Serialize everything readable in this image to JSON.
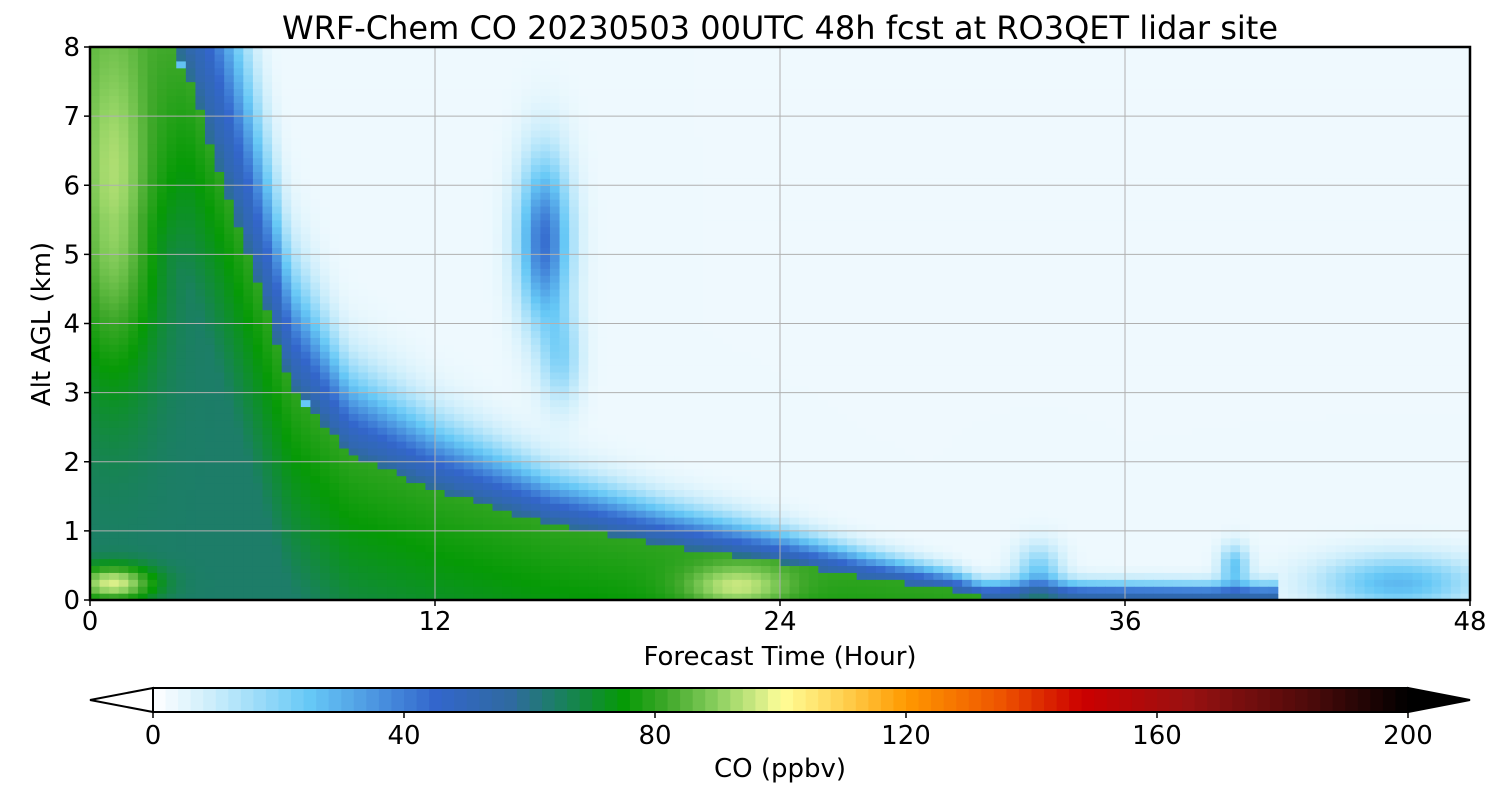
{
  "chart_data": {
    "type": "heatmap",
    "title": "WRF-Chem CO  20230503 00UTC 48h fcst at RO3QET lidar site",
    "xlabel": "Forecast Time (Hour)",
    "ylabel": "Alt AGL (km)",
    "xlim": [
      0,
      48
    ],
    "ylim": [
      0,
      8
    ],
    "xticks": [
      0,
      12,
      24,
      36,
      48
    ],
    "yticks": [
      0,
      1,
      2,
      3,
      4,
      5,
      6,
      7,
      8
    ],
    "grid": true,
    "colorbar": {
      "label": "CO  (ppbv)",
      "vmin": 0,
      "vmax": 200,
      "ticks": [
        0,
        40,
        80,
        120,
        160,
        200
      ],
      "extend": "both",
      "stops": [
        {
          "v": 0,
          "color": "#ffffff"
        },
        {
          "v": 10,
          "color": "#c8ecfb"
        },
        {
          "v": 25,
          "color": "#66c8f6"
        },
        {
          "v": 45,
          "color": "#3366cc"
        },
        {
          "v": 57,
          "color": "#2f6aa0"
        },
        {
          "v": 65,
          "color": "#1a8060"
        },
        {
          "v": 75,
          "color": "#069a06"
        },
        {
          "v": 82,
          "color": "#3fa82a"
        },
        {
          "v": 90,
          "color": "#8cd060"
        },
        {
          "v": 97,
          "color": "#d8ee88"
        },
        {
          "v": 100,
          "color": "#ffff99"
        },
        {
          "v": 110,
          "color": "#ffd050"
        },
        {
          "v": 120,
          "color": "#ff9900"
        },
        {
          "v": 135,
          "color": "#ee5500"
        },
        {
          "v": 148,
          "color": "#cc0000"
        },
        {
          "v": 165,
          "color": "#991111"
        },
        {
          "v": 185,
          "color": "#4a0a0a"
        },
        {
          "v": 200,
          "color": "#000000"
        }
      ]
    },
    "field": {
      "base": 3,
      "wave": [
        {
          "t": 0,
          "h": 8.5
        },
        {
          "t": 2,
          "h": 8.5
        },
        {
          "t": 3.4,
          "h": 7.6
        },
        {
          "t": 4.2,
          "h": 6.6
        },
        {
          "t": 5.5,
          "h": 5.0
        },
        {
          "t": 7,
          "h": 3.1
        },
        {
          "t": 9,
          "h": 2.1
        },
        {
          "t": 12,
          "h": 1.6
        },
        {
          "t": 16,
          "h": 1.1
        },
        {
          "t": 20,
          "h": 0.8
        },
        {
          "t": 24,
          "h": 0.55
        },
        {
          "t": 27,
          "h": 0.33
        },
        {
          "t": 30,
          "h": 0.15
        },
        {
          "t": 31,
          "h": 0.05
        },
        {
          "t": 48,
          "h": 0.0
        }
      ],
      "blobs": [
        {
          "t": 0.8,
          "z": 5.6,
          "st": 1.6,
          "sz": 2.4,
          "a": 27
        },
        {
          "t": 0.8,
          "z": 0.25,
          "st": 1.4,
          "sz": 0.25,
          "a": 33
        },
        {
          "t": 22.5,
          "z": 0.2,
          "st": 1.8,
          "sz": 0.3,
          "a": 18
        },
        {
          "t": 15.8,
          "z": 5.2,
          "st": 0.9,
          "sz": 1.2,
          "a": 40
        },
        {
          "t": 16.4,
          "z": 3.5,
          "st": 0.7,
          "sz": 0.7,
          "a": 15
        },
        {
          "t": 33,
          "z": 0.4,
          "st": 0.8,
          "sz": 0.4,
          "a": 20
        },
        {
          "t": 39.8,
          "z": 0.5,
          "st": 0.5,
          "sz": 0.3,
          "a": 22
        },
        {
          "t": 45.5,
          "z": 0.25,
          "st": 2.8,
          "sz": 0.4,
          "a": 25
        }
      ]
    }
  }
}
